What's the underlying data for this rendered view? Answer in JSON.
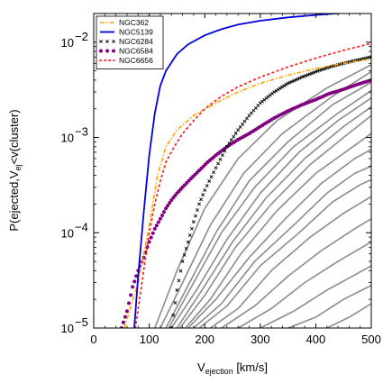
{
  "chart_data": {
    "type": "line",
    "title": "",
    "xlabel": "V_ejection [km/s]",
    "xlabel_main": "V",
    "xlabel_sub": "ejection",
    "xlabel_unit": " [km/s]",
    "ylabel": "P(ejected,V_ej<v(cluster)",
    "ylabel_pre": "P(ejected,V",
    "ylabel_sub": "ej",
    "ylabel_post": "<v(cluster)",
    "xlim": [
      0,
      500
    ],
    "ylim": [
      1e-05,
      0.02
    ],
    "yscale": "log",
    "grid": false,
    "legend_position": "top-left",
    "x_ticks": [
      0,
      100,
      200,
      300,
      400,
      500
    ],
    "x_tick_labels": [
      "0",
      "100",
      "200",
      "300",
      "400",
      "500"
    ],
    "y_ticks": [
      1e-05,
      0.0001,
      0.001,
      0.01
    ],
    "y_tick_labels": [
      {
        "base": "10",
        "exp": "−5"
      },
      {
        "base": "10",
        "exp": "−4"
      },
      {
        "base": "10",
        "exp": "−3"
      },
      {
        "base": "10",
        "exp": "−2"
      }
    ],
    "series": [
      {
        "name": "NGC362",
        "color": "#ffa500",
        "style": "dashdot",
        "x": [
          55,
          80,
          100,
          115,
          130,
          150,
          180,
          220,
          260,
          300,
          350,
          400,
          450,
          500
        ],
        "y": [
          1e-05,
          3e-05,
          0.00012,
          0.0004,
          0.0008,
          0.0012,
          0.0017,
          0.0023,
          0.003,
          0.0037,
          0.0045,
          0.0053,
          0.006,
          0.0067
        ]
      },
      {
        "name": "NGC5139",
        "color": "#0000dd",
        "style": "solid",
        "x": [
          73,
          80,
          90,
          100,
          110,
          120,
          130,
          150,
          170,
          200,
          230,
          260,
          300,
          350,
          400,
          450,
          500
        ],
        "y": [
          1e-05,
          3.5e-05,
          0.00016,
          0.00065,
          0.0018,
          0.0035,
          0.005,
          0.0075,
          0.0095,
          0.0118,
          0.0137,
          0.0153,
          0.0168,
          0.0182,
          0.0193,
          0.0203,
          0.0212
        ]
      },
      {
        "name": "NGC6284",
        "color": "#000000",
        "style": "x",
        "x": [
          140,
          150,
          160,
          170,
          180,
          190,
          200,
          220,
          240,
          260,
          280,
          300,
          325,
          350,
          375,
          400,
          425,
          450,
          475,
          500
        ],
        "y": [
          1e-05,
          2.5e-05,
          5e-05,
          8e-05,
          0.00013,
          0.0002,
          0.00028,
          0.00048,
          0.0008,
          0.0012,
          0.0017,
          0.0023,
          0.003,
          0.0037,
          0.0043,
          0.0049,
          0.0055,
          0.006,
          0.0065,
          0.007
        ]
      },
      {
        "name": "NGC6584",
        "color": "#800080",
        "style": "dots",
        "x": [
          50,
          60,
          70,
          80,
          90,
          100,
          110,
          120,
          130,
          140,
          150,
          160,
          175,
          190,
          205,
          220,
          240,
          260,
          280,
          300,
          325,
          350,
          375,
          400,
          425,
          450,
          475,
          500
        ],
        "y": [
          1e-05,
          1.5e-05,
          2.7e-05,
          4e-05,
          5.5e-05,
          8e-05,
          0.00011,
          0.00014,
          0.00018,
          0.00022,
          0.00026,
          0.0003,
          0.00037,
          0.00045,
          0.00055,
          0.00065,
          0.0008,
          0.00095,
          0.0011,
          0.0013,
          0.0016,
          0.0019,
          0.0022,
          0.0025,
          0.0029,
          0.0032,
          0.0036,
          0.004
        ]
      },
      {
        "name": "NGC6656",
        "color": "#ff2020",
        "style": "dotted",
        "x": [
          75,
          90,
          100,
          110,
          120,
          130,
          145,
          160,
          180,
          200,
          230,
          260,
          300,
          350,
          400,
          450,
          500
        ],
        "y": [
          1e-05,
          4e-05,
          0.0001,
          0.0002,
          0.00035,
          0.00055,
          0.0008,
          0.0011,
          0.0015,
          0.002,
          0.0027,
          0.0034,
          0.0043,
          0.0055,
          0.0068,
          0.0082,
          0.0097
        ]
      }
    ],
    "gray_series": [
      {
        "x": [
          110,
          150,
          200,
          260,
          330,
          420,
          500
        ],
        "y": [
          1e-05,
          4e-05,
          0.00018,
          0.0006,
          0.0015,
          0.0033,
          0.0058
        ]
      },
      {
        "x": [
          120,
          160,
          210,
          270,
          340,
          430,
          500
        ],
        "y": [
          1e-05,
          3e-05,
          0.00012,
          0.00042,
          0.0011,
          0.0027,
          0.0049
        ]
      },
      {
        "x": [
          130,
          170,
          220,
          280,
          350,
          430,
          500
        ],
        "y": [
          1e-05,
          2.8e-05,
          0.0001,
          0.00035,
          0.0009,
          0.0022,
          0.0038
        ]
      },
      {
        "x": [
          135,
          180,
          230,
          290,
          360,
          440,
          500
        ],
        "y": [
          1e-05,
          3e-05,
          0.0001,
          0.0003,
          0.0008,
          0.0018,
          0.0031
        ]
      },
      {
        "x": [
          140,
          185,
          240,
          300,
          370,
          440,
          500
        ],
        "y": [
          1e-05,
          2.5e-05,
          8.5e-05,
          0.00026,
          0.0007,
          0.0015,
          0.0026
        ]
      },
      {
        "x": [
          150,
          195,
          250,
          310,
          380,
          450,
          500
        ],
        "y": [
          1e-05,
          2.5e-05,
          8e-05,
          0.00023,
          0.0006,
          0.0013,
          0.0021
        ]
      },
      {
        "x": [
          155,
          200,
          255,
          320,
          390,
          450,
          500
        ],
        "y": [
          1e-05,
          2.2e-05,
          7e-05,
          0.0002,
          0.00052,
          0.001,
          0.0017
        ]
      },
      {
        "x": [
          165,
          210,
          265,
          330,
          400,
          460,
          500
        ],
        "y": [
          1e-05,
          2e-05,
          6e-05,
          0.00017,
          0.00042,
          0.00075,
          0.0011
        ]
      },
      {
        "x": [
          170,
          220,
          280,
          345,
          410,
          470,
          500
        ],
        "y": [
          1e-05,
          2e-05,
          5.5e-05,
          0.00014,
          0.00033,
          0.0006,
          0.00075
        ]
      },
      {
        "x": [
          180,
          230,
          290,
          360,
          420,
          470,
          500
        ],
        "y": [
          1e-05,
          1.8e-05,
          5e-05,
          0.00012,
          0.00026,
          0.00042,
          0.0005
        ]
      },
      {
        "x": [
          190,
          240,
          300,
          370,
          430,
          480,
          500
        ],
        "y": [
          1e-05,
          1.7e-05,
          4.5e-05,
          0.0001,
          0.00021,
          0.00032,
          0.00036
        ]
      },
      {
        "x": [
          210,
          260,
          320,
          390,
          450,
          500
        ],
        "y": [
          1e-05,
          1.6e-05,
          4e-05,
          9e-05,
          0.00016,
          0.00024
        ]
      },
      {
        "x": [
          230,
          290,
          350,
          410,
          470,
          500
        ],
        "y": [
          1e-05,
          1.7e-05,
          3.5e-05,
          6.5e-05,
          0.00011,
          0.00014
        ]
      },
      {
        "x": [
          260,
          320,
          380,
          440,
          500
        ],
        "y": [
          1e-05,
          1.6e-05,
          3e-05,
          5e-05,
          8e-05
        ]
      },
      {
        "x": [
          300,
          360,
          420,
          470,
          500
        ],
        "y": [
          1e-05,
          1.5e-05,
          2.5e-05,
          3.6e-05,
          4.5e-05
        ]
      },
      {
        "x": [
          350,
          400,
          450,
          500
        ],
        "y": [
          1e-05,
          1.3e-05,
          2e-05,
          2.8e-05
        ]
      },
      {
        "x": [
          420,
          460,
          500
        ],
        "y": [
          1e-05,
          1.3e-05,
          1.8e-05
        ]
      }
    ]
  }
}
